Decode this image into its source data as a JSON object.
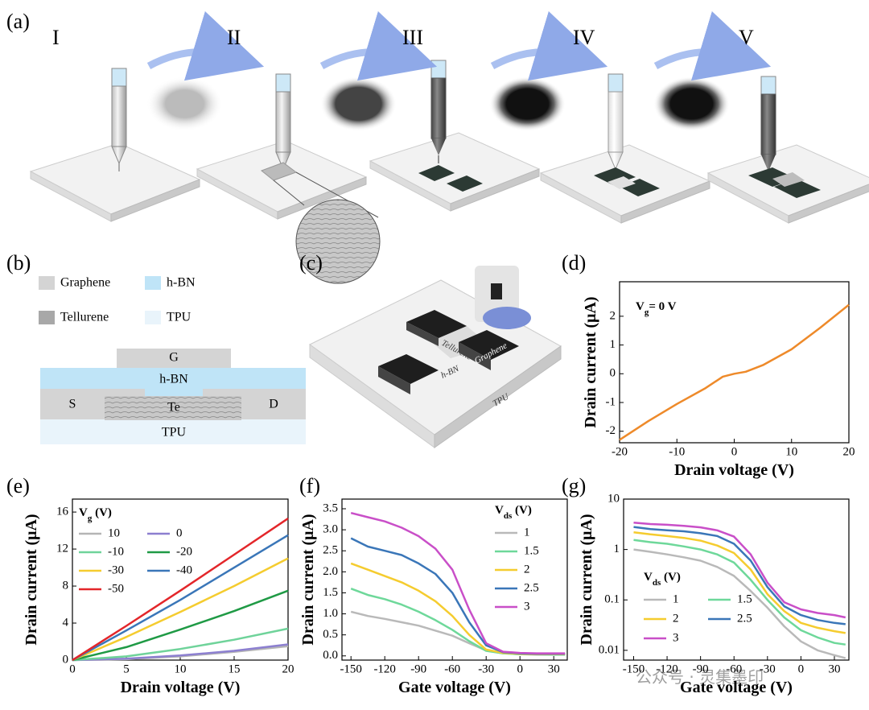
{
  "panel_labels": [
    "(a)",
    "(b)",
    "(c)",
    "(d)",
    "(e)",
    "(f)",
    "(g)"
  ],
  "step_labels": [
    "I",
    "II",
    "III",
    "IV",
    "V"
  ],
  "layer_legend": [
    "Graphene",
    "h-BN",
    "Tellurene",
    "TPU"
  ],
  "layer_stack": [
    "G",
    "h-BN",
    "S",
    "Te",
    "D",
    "TPU"
  ],
  "device_labels": [
    "Tellurene",
    "Graphene",
    "h-BN",
    "TPU"
  ],
  "watermark": "公众号 · 灵集墨印",
  "chart_data": [
    {
      "type": "line",
      "annotation": [
        "V",
        "g",
        "= 0 V"
      ],
      "x_label": "Drain voltage (V)",
      "y_label": "Drain current (μA)",
      "x": [
        -20,
        -15,
        -10,
        -5,
        -2,
        0,
        2,
        5,
        10,
        15,
        20
      ],
      "series": [
        {
          "color": "#ee8a2a",
          "values": [
            -2.3,
            -1.65,
            -1.05,
            -0.5,
            -0.1,
            0,
            0.07,
            0.3,
            0.85,
            1.6,
            2.4
          ]
        }
      ],
      "xlim": [
        -20,
        20
      ],
      "ylim": [
        -2.4,
        3.2
      ],
      "xticks": [
        -20,
        -10,
        0,
        10,
        20
      ],
      "yticks": [
        -2,
        -1,
        0,
        1,
        2
      ]
    },
    {
      "type": "line",
      "legend_title": [
        "V",
        "g",
        " (V)"
      ],
      "x_label": "Drain voltage (V)",
      "y_label": "Drain current (μA)",
      "x": [
        0,
        5,
        10,
        15,
        20
      ],
      "series": [
        {
          "name": "10",
          "color": "#b5b5b5",
          "values": [
            0,
            0.1,
            0.4,
            0.9,
            1.5
          ]
        },
        {
          "name": "0",
          "color": "#8c7fd0",
          "values": [
            0,
            0.15,
            0.5,
            1.0,
            1.7
          ]
        },
        {
          "name": "-10",
          "color": "#6fd39a",
          "values": [
            0,
            0.4,
            1.2,
            2.2,
            3.4
          ]
        },
        {
          "name": "-20",
          "color": "#1f9a45",
          "values": [
            0,
            1.4,
            3.3,
            5.3,
            7.5
          ]
        },
        {
          "name": "-30",
          "color": "#f5cc2f",
          "values": [
            0,
            2.5,
            5.2,
            8.0,
            11
          ]
        },
        {
          "name": "-40",
          "color": "#3a76b8",
          "values": [
            0,
            3.2,
            6.5,
            10,
            13.5
          ]
        },
        {
          "name": "-50",
          "color": "#e3262a",
          "values": [
            0,
            3.7,
            7.5,
            11.4,
            15.3
          ]
        }
      ],
      "xlim": [
        0,
        20
      ],
      "ylim": [
        0,
        17.4
      ],
      "xticks": [
        0,
        5,
        10,
        15,
        20
      ],
      "yticks": [
        0,
        4,
        8,
        12,
        16
      ]
    },
    {
      "type": "line",
      "legend_title": [
        "V",
        "ds",
        " (V)"
      ],
      "x_label": "Gate voltage (V)",
      "y_label": "Drain current (μA)",
      "x": [
        -150,
        -135,
        -120,
        -105,
        -90,
        -75,
        -60,
        -45,
        -30,
        -15,
        0,
        15,
        30,
        40
      ],
      "series": [
        {
          "name": "1",
          "color": "#b9b9b9",
          "values": [
            1.05,
            0.95,
            0.88,
            0.8,
            0.72,
            0.6,
            0.48,
            0.3,
            0.13,
            0.06,
            0.04,
            0.03,
            0.03,
            0.03
          ]
        },
        {
          "name": "1.5",
          "color": "#6ed89a",
          "values": [
            1.6,
            1.45,
            1.35,
            1.22,
            1.05,
            0.85,
            0.62,
            0.35,
            0.12,
            0.06,
            0.04,
            0.04,
            0.03,
            0.03
          ]
        },
        {
          "name": "2",
          "color": "#f5cc2f",
          "values": [
            2.2,
            2.05,
            1.9,
            1.75,
            1.55,
            1.3,
            0.95,
            0.5,
            0.15,
            0.07,
            0.05,
            0.04,
            0.04,
            0.04
          ]
        },
        {
          "name": "2.5",
          "color": "#3a76b8",
          "values": [
            2.8,
            2.6,
            2.5,
            2.4,
            2.2,
            1.95,
            1.5,
            0.8,
            0.25,
            0.09,
            0.06,
            0.05,
            0.05,
            0.05
          ]
        },
        {
          "name": "3",
          "color": "#c94fc8",
          "values": [
            3.4,
            3.3,
            3.2,
            3.05,
            2.85,
            2.55,
            2.05,
            1.1,
            0.3,
            0.1,
            0.07,
            0.06,
            0.06,
            0.06
          ]
        }
      ],
      "xlim": [
        -158,
        42
      ],
      "ylim": [
        -0.1,
        3.73
      ],
      "xticks": [
        -150,
        -120,
        -90,
        -60,
        -30,
        0,
        30
      ],
      "yticks": [
        {
          "value": 0,
          "label": "0.0"
        },
        0.5,
        {
          "value": 1,
          "label": "1.0"
        },
        1.5,
        {
          "value": 2,
          "label": "2.0"
        },
        2.5,
        {
          "value": 3,
          "label": "3.0"
        },
        3.5
      ]
    },
    {
      "type": "line",
      "log_y": true,
      "legend_title": [
        "V",
        "ds",
        " (V)"
      ],
      "x_label": "Gate voltage (V)",
      "y_label": "Drain current (μA)",
      "x": [
        -150,
        -135,
        -120,
        -105,
        -90,
        -75,
        -60,
        -45,
        -30,
        -15,
        0,
        15,
        30,
        40
      ],
      "series": [
        {
          "name": "1",
          "color": "#b9b9b9",
          "values": [
            1.0,
            0.9,
            0.8,
            0.7,
            0.6,
            0.45,
            0.3,
            0.15,
            0.07,
            0.03,
            0.015,
            0.01,
            0.008,
            0.007
          ]
        },
        {
          "name": "1.5",
          "color": "#6ed89a",
          "values": [
            1.55,
            1.4,
            1.3,
            1.15,
            1.0,
            0.8,
            0.55,
            0.25,
            0.1,
            0.045,
            0.025,
            0.018,
            0.014,
            0.013
          ]
        },
        {
          "name": "2",
          "color": "#f5cc2f",
          "values": [
            2.2,
            2.0,
            1.85,
            1.7,
            1.5,
            1.2,
            0.85,
            0.4,
            0.13,
            0.06,
            0.035,
            0.028,
            0.024,
            0.022
          ]
        },
        {
          "name": "2.5",
          "color": "#3a76b8",
          "values": [
            2.8,
            2.55,
            2.4,
            2.3,
            2.1,
            1.85,
            1.3,
            0.6,
            0.18,
            0.075,
            0.05,
            0.04,
            0.035,
            0.033
          ]
        },
        {
          "name": "3",
          "color": "#c94fc8",
          "values": [
            3.4,
            3.2,
            3.1,
            2.95,
            2.75,
            2.4,
            1.8,
            0.8,
            0.22,
            0.09,
            0.065,
            0.055,
            0.05,
            0.045
          ]
        }
      ],
      "xlim": [
        -159,
        43
      ],
      "ylim": [
        0.0064,
        10
      ],
      "xticks": [
        -150,
        -120,
        -90,
        -60,
        -30,
        0,
        30
      ],
      "yticks": [
        0.01,
        0.1,
        1,
        10
      ]
    }
  ]
}
